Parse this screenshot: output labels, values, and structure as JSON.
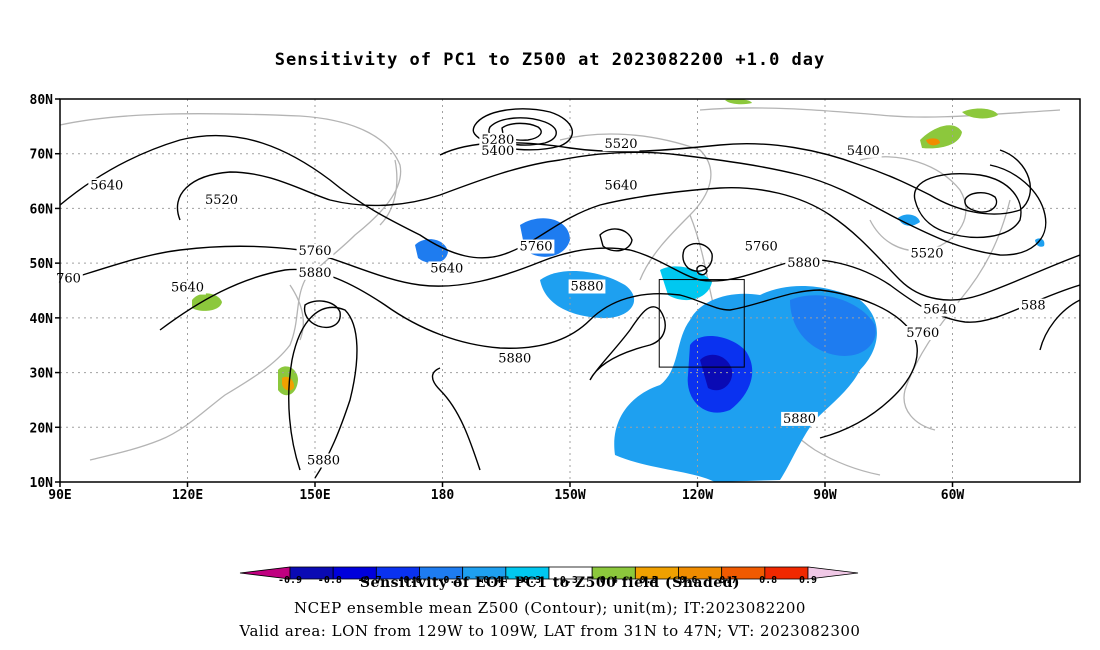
{
  "title": "Sensitivity of PC1 to Z500 at 2023082200 +1.0 day",
  "map": {
    "lat_labels": [
      "80N",
      "70N",
      "60N",
      "50N",
      "40N",
      "30N",
      "20N",
      "10N"
    ],
    "lon_labels": [
      "90E",
      "120E",
      "150E",
      "180",
      "150W",
      "120W",
      "90W",
      "60W"
    ],
    "contour_labels": [
      {
        "text": "5640",
        "lon": 101,
        "lat": 63.5
      },
      {
        "text": "5520",
        "lon": 128,
        "lat": 60.8
      },
      {
        "text": "5280",
        "lon": -167,
        "lat": 71.8
      },
      {
        "text": "5400",
        "lon": -167,
        "lat": 69.8
      },
      {
        "text": "5520",
        "lon": -138,
        "lat": 71.0
      },
      {
        "text": "5640",
        "lon": -138,
        "lat": 63.5
      },
      {
        "text": "5400",
        "lon": -81,
        "lat": 69.8
      },
      {
        "text": "5520",
        "lon": -66,
        "lat": 51.0
      },
      {
        "text": "5640",
        "lon": -63,
        "lat": 40.8
      },
      {
        "text": "5760",
        "lon": -67,
        "lat": 36.5
      },
      {
        "text": "588",
        "lon": -41,
        "lat": 41.5
      },
      {
        "text": "760",
        "lon": 92,
        "lat": 46.5
      },
      {
        "text": "5640",
        "lon": 120,
        "lat": 44.8
      },
      {
        "text": "5760",
        "lon": 150,
        "lat": 51.5
      },
      {
        "text": "5880",
        "lon": 150,
        "lat": 47.5
      },
      {
        "text": "5640",
        "lon": -179,
        "lat": 48.3
      },
      {
        "text": "5760",
        "lon": -158,
        "lat": 52.3
      },
      {
        "text": "5880",
        "lon": -146,
        "lat": 45.0
      },
      {
        "text": "5760",
        "lon": -105,
        "lat": 52.3
      },
      {
        "text": "5880",
        "lon": -95,
        "lat": 49.3
      },
      {
        "text": "5880",
        "lon": -163,
        "lat": 31.8
      },
      {
        "text": "5880",
        "lon": -96,
        "lat": 20.8
      },
      {
        "text": "5880",
        "lon": 152,
        "lat": 13.2
      }
    ],
    "valid_box": {
      "lon_w": -129,
      "lon_e": -109,
      "lat_s": 31,
      "lat_n": 47
    }
  },
  "colorbar": {
    "ticks": [
      "-0.9",
      "-0.8",
      "-0.7",
      "-0.6",
      "-0.5",
      "-0.4",
      "-0.3",
      "0.3",
      "0.4",
      "0.5",
      "0.6",
      "0.7",
      "0.8",
      "0.9"
    ],
    "colors": [
      "#c00080",
      "#0a0ab4",
      "#0000dc",
      "#0a32f0",
      "#1e7cf0",
      "#1ea0f0",
      "#00c8f0",
      "#ffffff",
      "#8cc83c",
      "#f0a000",
      "#f08c00",
      "#f05a00",
      "#f02800",
      "#f0c8e6"
    ],
    "label": "Sensitivity of EOF PC1 to Z500 field (Shaded)"
  },
  "notes": {
    "line2": "NCEP ensemble mean Z500 (Contour); unit(m); IT:2023082200",
    "line3": "Valid area: LON from 129W to 109W, LAT from 31N to 47N; VT: 2023082300"
  }
}
